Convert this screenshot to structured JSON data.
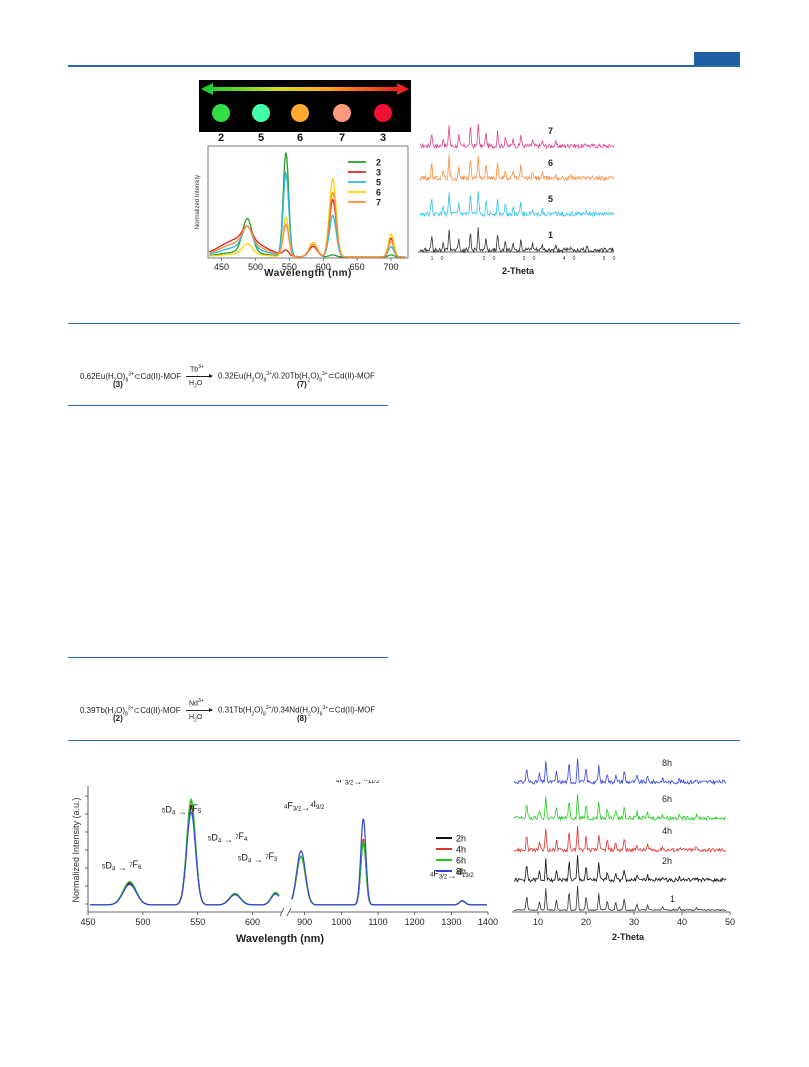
{
  "figure_top": {
    "strip_labels": [
      "2",
      "5",
      "6",
      "7",
      "3"
    ],
    "strip_spot_colors": [
      "#33dd44",
      "#44ffaa",
      "#ffaa33",
      "#ff9a7a",
      "#ee1133"
    ],
    "chart_left": {
      "type": "line",
      "ylabel": "Normalized Intensity",
      "xlabel": "Wavelength (nm)",
      "xlim": [
        430,
        725
      ],
      "ylim": [
        0,
        1.05
      ],
      "x_ticks": [
        "450",
        "500",
        "550",
        "600",
        "650",
        "700"
      ],
      "legend": [
        "2",
        "3",
        "5",
        "6",
        "7"
      ],
      "series_colors": [
        "#2a9a2a",
        "#e02020",
        "#2ab8e0",
        "#ffd400",
        "#ff8a3a"
      ]
    },
    "chart_right": {
      "type": "line",
      "xlabel": "2-Theta",
      "x_ticks": [
        "1",
        "0",
        "2",
        "0",
        "3",
        "0",
        "4",
        "0",
        "5",
        "0"
      ],
      "traces": [
        {
          "label": "7",
          "color": "#e0408a"
        },
        {
          "label": "6",
          "color": "#ff8c3a"
        },
        {
          "label": "5",
          "color": "#2fc8e8"
        },
        {
          "label": "1",
          "color": "#333333"
        }
      ]
    }
  },
  "scheme_1": {
    "reactant": "0.62Eu(H",
    "reactant_sub1": "2",
    "reactant_mid": "O)",
    "reactant_sub2": "8",
    "reactant_sup": "3+",
    "reactant_tail": "⊂Cd(II)-MOF",
    "reactant_label": "(3)",
    "reagent_top": "Tb",
    "reagent_top_sup": "3+",
    "reagent_bottom": "H",
    "reagent_bottom_sub": "2",
    "reagent_bottom_tail": "O",
    "product": "0.32Eu(H",
    "product_sub1": "2",
    "product_mid1": "O)",
    "product_sub2": "8",
    "product_sup1": "3+",
    "product_mid2": "/0.20Tb(H",
    "product_sub3": "2",
    "product_mid3": "O)",
    "product_sub4": "8",
    "product_sup2": "3+",
    "product_tail": "⊂Cd(II)-MOF",
    "product_label": "(7)"
  },
  "scheme_2": {
    "reactant": "0.39Tb(H",
    "reactant_sub1": "2",
    "reactant_mid": "O)",
    "reactant_sub2": "8",
    "reactant_sup": "3+",
    "reactant_tail": "⊂Cd(II)-MOF",
    "reactant_label": "(2)",
    "reagent_top": "Nd",
    "reagent_top_sup": "3+",
    "reagent_bottom": "H",
    "reagent_bottom_sub": "2",
    "reagent_bottom_tail": "O",
    "product": "0.31Tb(H",
    "product_sub1": "2",
    "product_mid1": "O)",
    "product_sub2": "8",
    "product_sup1": "3+",
    "product_mid2": "/0.34Nd(H",
    "product_sub3": "2",
    "product_mid3": "O)",
    "product_sub4": "8",
    "product_sup2": "3+",
    "product_tail": "⊂Cd(II)-MOF",
    "product_label": "(8)"
  },
  "figure_bottom": {
    "chart_left": {
      "type": "line",
      "ylabel": "Normalized Intensity (a.u.)",
      "xlabel": "Wavelength (nm)",
      "x_ticks_vis": [
        "450",
        "500",
        "550",
        "600"
      ],
      "x_ticks_nir": [
        "900",
        "1000",
        "1100",
        "1200",
        "1300",
        "1400"
      ],
      "legend": [
        "2h",
        "4h",
        "6h",
        "8h"
      ],
      "series_colors": [
        "#111111",
        "#e03030",
        "#22cc22",
        "#3344dd"
      ],
      "annotations": [
        {
          "pre": "5",
          "a": "D",
          "asub": "4",
          "arrow": " → ",
          "post": "7",
          "b": "F",
          "bsub": "6"
        },
        {
          "pre": "5",
          "a": "D",
          "asub": "4",
          "arrow": " → ",
          "post": "7",
          "b": "F",
          "bsub": "5"
        },
        {
          "pre": "5",
          "a": "D",
          "asub": "4",
          "arrow": " → ",
          "post": "7",
          "b": "F",
          "bsub": "4"
        },
        {
          "pre": "5",
          "a": "D",
          "asub": "4",
          "arrow": " → ",
          "post": "7",
          "b": "F",
          "bsub": "3"
        },
        {
          "pre": "4",
          "a": "F",
          "asub": "3/2",
          "arrow": "→",
          "post": "4",
          "b": "I",
          "bsub": "9/2"
        },
        {
          "pre": "4",
          "a": "F",
          "asub": "3/2",
          "arrow": "→",
          "post": "4",
          "b": "I",
          "bsub": "11/2"
        },
        {
          "pre": "4",
          "a": "F",
          "asub": "3/2",
          "arrow": "→",
          "post": "4",
          "b": "I",
          "bsub": "13/2"
        }
      ]
    },
    "chart_right": {
      "type": "line",
      "xlabel": "2-Theta",
      "xlim": [
        5,
        50
      ],
      "x_ticks": [
        "10",
        "20",
        "30",
        "40",
        "50"
      ],
      "traces": [
        {
          "label": "8h",
          "color": "#3344dd"
        },
        {
          "label": "6h",
          "color": "#22cc22"
        },
        {
          "label": "4h",
          "color": "#e03030"
        },
        {
          "label": "2h",
          "color": "#111111"
        },
        {
          "label": "1",
          "color": "#333333"
        }
      ]
    }
  }
}
